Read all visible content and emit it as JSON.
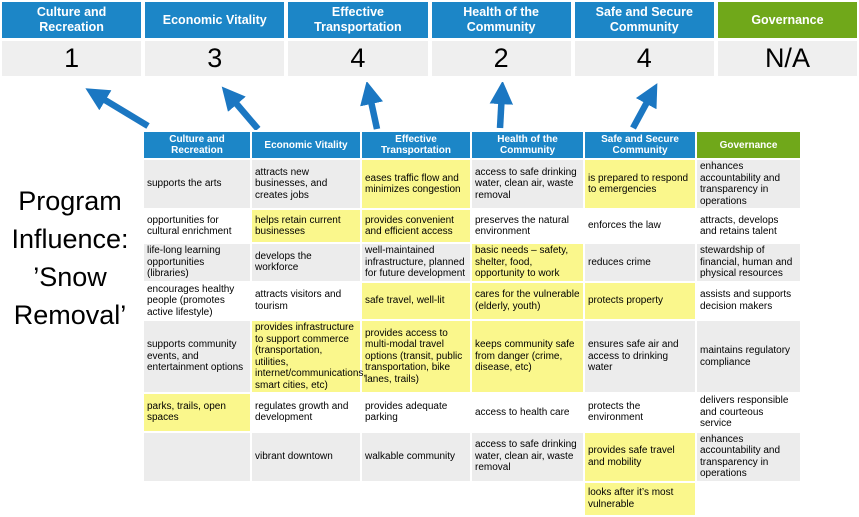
{
  "colors": {
    "priority_blue": "#1c86c7",
    "governance_green": "#70a81a",
    "arrow_blue": "#1b77c2",
    "highlight_yellow": "#faf78c",
    "score_gray": "#efefef",
    "alt_row_gray": "#ececec"
  },
  "title": {
    "text": "Program Influence: ’Snow Removal’"
  },
  "priorities": [
    {
      "label": "Culture and Recreation",
      "score": "1",
      "theme": "blue",
      "arrow": true
    },
    {
      "label": "Economic Vitality",
      "score": "3",
      "theme": "blue",
      "arrow": true
    },
    {
      "label": "Effective Transportation",
      "score": "4",
      "theme": "blue",
      "arrow": true
    },
    {
      "label": "Health of the Community",
      "score": "2",
      "theme": "blue",
      "arrow": true
    },
    {
      "label": "Safe and Secure Community",
      "score": "4",
      "theme": "blue",
      "arrow": true
    },
    {
      "label": "Governance",
      "score": "N/A",
      "theme": "green",
      "arrow": false
    }
  ],
  "matrix": {
    "columns": [
      {
        "label": "Culture and Recreation",
        "theme": "blue"
      },
      {
        "label": "Economic Vitality",
        "theme": "blue"
      },
      {
        "label": "Effective Transportation",
        "theme": "blue"
      },
      {
        "label": "Health of the Community",
        "theme": "blue"
      },
      {
        "label": "Safe and Secure Community",
        "theme": "blue"
      },
      {
        "label": "Governance",
        "theme": "green"
      }
    ],
    "rows": [
      {
        "cells": [
          {
            "t": "supports the arts",
            "h": false
          },
          {
            "t": "attracts new businesses, and creates jobs",
            "h": false
          },
          {
            "t": "eases traffic flow and minimizes congestion",
            "h": true
          },
          {
            "t": "access to safe drinking water, clean air, waste removal",
            "h": false
          },
          {
            "t": "is prepared to respond to emergencies",
            "h": true
          },
          {
            "t": "enhances accountability and transparency in operations",
            "h": false
          }
        ]
      },
      {
        "cells": [
          {
            "t": "opportunities for cultural enrichment",
            "h": false
          },
          {
            "t": "helps retain current businesses",
            "h": true
          },
          {
            "t": "provides convenient and efficient access",
            "h": true
          },
          {
            "t": "preserves the natural environment",
            "h": false
          },
          {
            "t": "enforces the law",
            "h": false
          },
          {
            "t": "attracts, develops and retains talent",
            "h": false
          }
        ]
      },
      {
        "cells": [
          {
            "t": "life-long learning opportunities (libraries)",
            "h": false
          },
          {
            "t": "develops the workforce",
            "h": false
          },
          {
            "t": "well-maintained infrastructure, planned for future development",
            "h": false
          },
          {
            "t": "basic needs – safety, shelter, food, opportunity to work",
            "h": true
          },
          {
            "t": "reduces crime",
            "h": false
          },
          {
            "t": "stewardship of financial, human and physical resources",
            "h": false
          }
        ]
      },
      {
        "cells": [
          {
            "t": "encourages healthy people (promotes active lifestyle)",
            "h": false
          },
          {
            "t": "attracts visitors and tourism",
            "h": false
          },
          {
            "t": "safe travel, well-lit",
            "h": true
          },
          {
            "t": "cares for the vulnerable (elderly, youth)",
            "h": true
          },
          {
            "t": "protects property",
            "h": true
          },
          {
            "t": "assists and supports decision makers",
            "h": false
          }
        ]
      },
      {
        "cells": [
          {
            "t": "supports community events, and entertainment options",
            "h": false
          },
          {
            "t": "provides infrastructure to support commerce (transportation, utilities, internet/communications, smart cities, etc)",
            "h": true
          },
          {
            "t": "provides access to multi-modal travel options (transit, public transportation, bike lanes, trails)",
            "h": true
          },
          {
            "t": "keeps community safe from danger (crime, disease, etc)",
            "h": true
          },
          {
            "t": "ensures safe air and access to drinking water",
            "h": false
          },
          {
            "t": "maintains regulatory compliance",
            "h": false
          }
        ]
      },
      {
        "cells": [
          {
            "t": "parks, trails, open spaces",
            "h": true
          },
          {
            "t": "regulates growth and development",
            "h": false
          },
          {
            "t": "provides adequate parking",
            "h": false
          },
          {
            "t": "access to health care",
            "h": false
          },
          {
            "t": "protects the environment",
            "h": false
          },
          {
            "t": "delivers responsible and courteous service",
            "h": false
          }
        ]
      },
      {
        "cells": [
          {
            "t": "",
            "h": false
          },
          {
            "t": "vibrant downtown",
            "h": false
          },
          {
            "t": "walkable community",
            "h": false
          },
          {
            "t": "access to safe drinking water, clean air, waste removal",
            "h": false
          },
          {
            "t": "provides safe travel and mobility",
            "h": true
          },
          {
            "t": "enhances accountability and transparency in operations",
            "h": false
          }
        ]
      },
      {
        "cells": [
          {
            "t": "",
            "h": false
          },
          {
            "t": "",
            "h": false
          },
          {
            "t": "",
            "h": false
          },
          {
            "t": "",
            "h": false
          },
          {
            "t": "looks after it’s most vulnerable",
            "h": true
          },
          {
            "t": "",
            "h": false
          }
        ]
      }
    ]
  }
}
